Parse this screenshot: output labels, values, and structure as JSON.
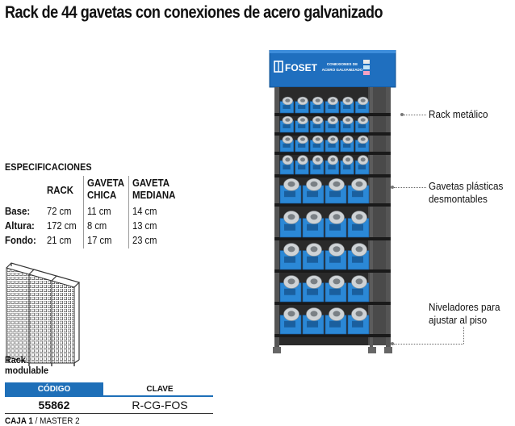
{
  "title": "Rack de 44 gavetas con conexiones de acero galvanizado",
  "specs": {
    "heading": "ESPECIFICACIONES",
    "columns": [
      {
        "line1": "RACK",
        "line2": ""
      },
      {
        "line1": "GAVETA",
        "line2": "CHICA"
      },
      {
        "line1": "GAVETA",
        "line2": "MEDIANA"
      }
    ],
    "rows": [
      {
        "label": "Base:",
        "values": [
          "72 cm",
          "11 cm",
          "14 cm"
        ]
      },
      {
        "label": "Altura:",
        "values": [
          "172 cm",
          "8 cm",
          "13 cm"
        ]
      },
      {
        "label": "Fondo:",
        "values": [
          "21 cm",
          "17 cm",
          "23 cm"
        ]
      }
    ]
  },
  "rack_modulable": {
    "line1": "Rack",
    "line2": "modulable"
  },
  "code_table": {
    "code_header": "CÓDIGO",
    "key_header": "CLAVE",
    "code_value": "55862",
    "key_value": "R-CG-FOS",
    "caja_label": "CAJA 1",
    "master_label": "MASTER 2"
  },
  "rack_sign": {
    "brand": "FOSET",
    "line1": "CONEXIONES DE",
    "line2": "ACERO GALVANIZADO"
  },
  "callouts": {
    "rack_metalico": "Rack metálico",
    "gavetas_line1": "Gavetas plásticas",
    "gavetas_line2": "desmontables",
    "niveladores_line1": "Niveladores para",
    "niveladores_line2": "ajustar al piso"
  },
  "colors": {
    "brand_blue": "#1e6fb8",
    "bin_blue": "#2b88d6",
    "frame_dark": "#3a3a3a"
  }
}
